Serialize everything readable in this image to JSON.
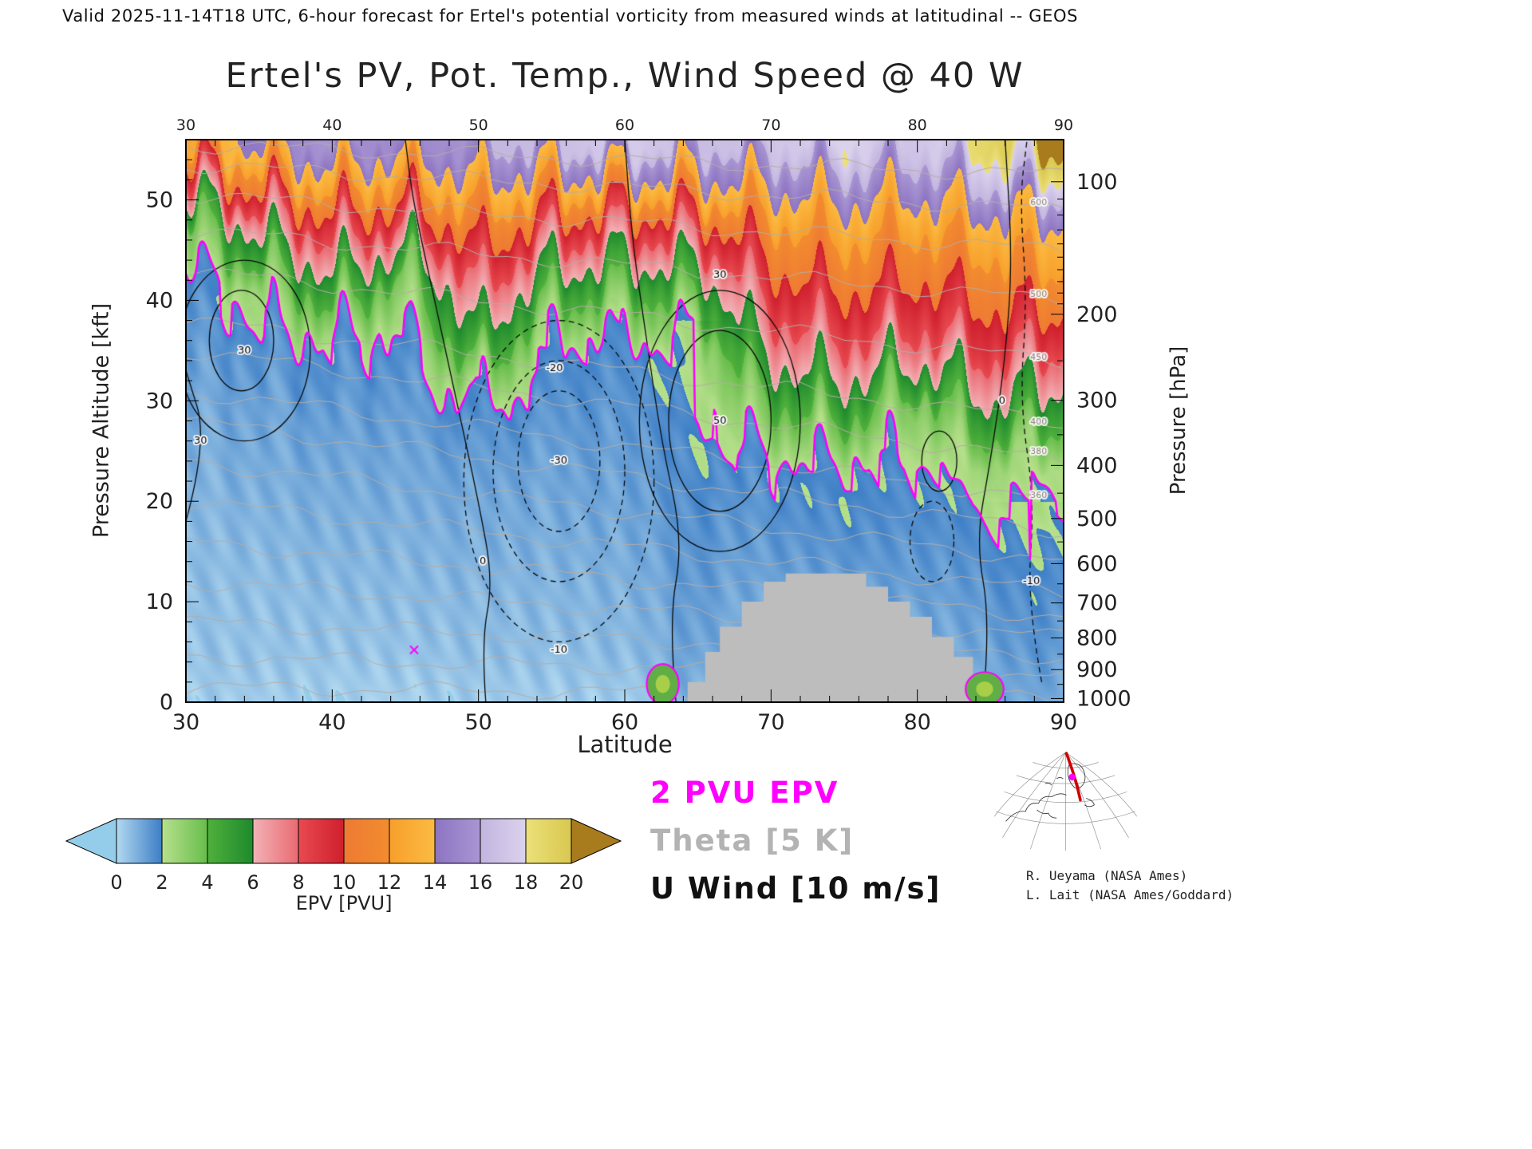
{
  "header": {
    "text": "Valid 2025-11-14T18 UTC, 6-hour forecast for Ertel's potential vorticity from measured winds at latitudinal -- GEOS"
  },
  "title": "Ertel's PV, Pot. Temp., Wind Speed @ 40 W",
  "axes": {
    "x": {
      "label": "Latitude",
      "min": 30,
      "max": 90,
      "major_ticks": [
        30,
        40,
        50,
        60,
        70,
        80,
        90
      ],
      "minor_step": 2
    },
    "y_left": {
      "label": "Pressure Altitude [kft]",
      "min": 0,
      "max": 56,
      "major_ticks": [
        0,
        10,
        20,
        30,
        40,
        50
      ],
      "minor_step": 2
    },
    "y_right": {
      "label": "Pressure [hPa]",
      "major_ticks": [
        100,
        200,
        300,
        400,
        500,
        600,
        700,
        800,
        900,
        1000
      ],
      "minor_ticks": [
        110,
        120,
        130,
        140,
        150,
        160,
        170,
        180,
        190,
        250,
        350,
        450,
        550,
        650,
        750,
        850,
        950
      ]
    }
  },
  "legend": {
    "items": [
      {
        "label": "2 PVU EPV",
        "color": "#ff00ff"
      },
      {
        "label": "Theta [5 K]",
        "color": "#b3b3b3"
      },
      {
        "label": "U Wind [10 m/s]",
        "color": "#111111"
      }
    ]
  },
  "colorbar": {
    "label": "EPV [PVU]",
    "ticks": [
      0,
      2,
      4,
      6,
      8,
      10,
      12,
      14,
      16,
      18,
      20
    ],
    "under_color": "#93cdea",
    "over_color": "#a87b1c",
    "segments": [
      {
        "from": 0,
        "to": 2,
        "c0": "#b2d9f0",
        "c1": "#3d7ec6"
      },
      {
        "from": 2,
        "to": 4,
        "c0": "#b7e08c",
        "c1": "#67bd4b"
      },
      {
        "from": 4,
        "to": 6,
        "c0": "#4fb03c",
        "c1": "#1e8a2d"
      },
      {
        "from": 6,
        "to": 8,
        "c0": "#f2b2b6",
        "c1": "#ea6a72"
      },
      {
        "from": 8,
        "to": 10,
        "c0": "#e84a50",
        "c1": "#cf1f2d"
      },
      {
        "from": 10,
        "to": 12,
        "c0": "#ee7a33",
        "c1": "#f28c2f"
      },
      {
        "from": 12,
        "to": 14,
        "c0": "#f79f2c",
        "c1": "#fbbb42"
      },
      {
        "from": 14,
        "to": 16,
        "c0": "#8d74c2",
        "c1": "#a996d3"
      },
      {
        "from": 16,
        "to": 18,
        "c0": "#c2b5df",
        "c1": "#dbd2ed"
      },
      {
        "from": 18,
        "to": 20,
        "c0": "#ebe079",
        "c1": "#d9c74f"
      }
    ]
  },
  "credits": {
    "line1": "R. Ueyama (NASA Ames)",
    "line2": "L. Lait (NASA Ames/Goddard)"
  },
  "inset_map": {
    "track_color": "#cf0000",
    "marker_color": "#ff00ff"
  },
  "chart_data": {
    "type": "heatmap",
    "title": "Ertel's PV, Pot. Temp., Wind Speed @ 40 W",
    "xlabel": "Latitude",
    "ylabel": "Pressure Altitude [kft]",
    "x_lat": [
      30,
      35,
      40,
      45,
      50,
      55,
      60,
      65,
      70,
      75,
      80,
      85,
      90
    ],
    "y_alt_kft": [
      0,
      6,
      12,
      18,
      24,
      30,
      36,
      42,
      48,
      52,
      56
    ],
    "epv_grid_pvu": [
      [
        0.5,
        0.5,
        0.6,
        0.7,
        0.9,
        1.1,
        1.4,
        1.6,
        3.4,
        8.0,
        12.5
      ],
      [
        0.5,
        0.5,
        0.6,
        0.8,
        1.0,
        1.2,
        1.6,
        2.8,
        7.0,
        11.0,
        14.5
      ],
      [
        0.4,
        0.5,
        0.7,
        0.9,
        1.1,
        1.4,
        1.9,
        5.5,
        9.5,
        13.0,
        16.0
      ],
      [
        0.4,
        0.5,
        0.7,
        0.9,
        1.1,
        1.3,
        1.7,
        3.2,
        8.5,
        12.0,
        15.0
      ],
      [
        0.5,
        0.6,
        0.8,
        1.0,
        1.3,
        1.9,
        5.5,
        8.5,
        11.5,
        14.0,
        16.0
      ],
      [
        0.5,
        0.6,
        0.8,
        1.0,
        1.2,
        1.5,
        1.9,
        5.0,
        9.5,
        13.0,
        16.5
      ],
      [
        0.5,
        0.7,
        0.9,
        1.1,
        1.3,
        1.5,
        1.8,
        4.5,
        9.0,
        13.5,
        17.5
      ],
      [
        0.6,
        0.8,
        1.0,
        1.2,
        1.4,
        1.6,
        1.9,
        5.0,
        9.5,
        13.5,
        16.5
      ],
      [
        0.7,
        0.9,
        1.2,
        1.5,
        1.9,
        4.0,
        7.0,
        9.5,
        12.0,
        14.5,
        17.0
      ],
      [
        0.8,
        1.0,
        1.3,
        1.7,
        2.1,
        5.0,
        8.0,
        10.5,
        13.0,
        15.5,
        18.0
      ],
      [
        0.8,
        1.0,
        1.3,
        1.6,
        1.9,
        3.0,
        7.5,
        10.0,
        12.5,
        15.0,
        17.0
      ],
      [
        0.9,
        1.1,
        1.4,
        1.8,
        2.8,
        6.0,
        9.0,
        11.0,
        13.5,
        16.5,
        19.0
      ],
      [
        0.9,
        1.1,
        1.4,
        1.7,
        2.2,
        5.0,
        8.5,
        11.5,
        14.0,
        17.5,
        21.0
      ]
    ],
    "tropopause_2pvu": {
      "lat": [
        30,
        35,
        40,
        45,
        50,
        55,
        60,
        65,
        70,
        75,
        80,
        85,
        90
      ],
      "alt_kft": [
        43,
        40,
        37,
        38.5,
        31,
        37,
        37.5,
        37,
        24,
        23,
        25.5,
        21,
        23
      ]
    },
    "missing_data_region": {
      "color": "#bdbdbd",
      "boundary_lat_alt": [
        [
          64.3,
          0
        ],
        [
          64.3,
          2
        ],
        [
          65.5,
          2
        ],
        [
          65.5,
          5
        ],
        [
          66.5,
          5
        ],
        [
          66.5,
          7.5
        ],
        [
          68,
          7.5
        ],
        [
          68,
          10
        ],
        [
          69.5,
          10
        ],
        [
          69.5,
          12
        ],
        [
          71,
          12
        ],
        [
          71,
          12.8
        ],
        [
          76.5,
          12.8
        ],
        [
          76.5,
          11.5
        ],
        [
          78,
          11.5
        ],
        [
          78,
          10
        ],
        [
          79.5,
          10
        ],
        [
          79.5,
          8.5
        ],
        [
          81,
          8.5
        ],
        [
          81,
          6.5
        ],
        [
          82.5,
          6.5
        ],
        [
          82.5,
          4.5
        ],
        [
          83.8,
          4.5
        ],
        [
          83.8,
          2
        ],
        [
          85,
          2
        ],
        [
          85,
          0
        ]
      ]
    },
    "theta_contours": {
      "interval_k": 5,
      "lines": [
        {
          "level": 280,
          "alt_at_30": 1.5,
          "alt_at_90": 0.5,
          "label": false
        },
        {
          "level": 290,
          "alt_at_30": 4.5,
          "alt_at_90": 2.5,
          "label": false
        },
        {
          "level": 300,
          "alt_at_30": 8,
          "alt_at_90": 4.5,
          "label": false
        },
        {
          "level": 310,
          "alt_at_30": 12,
          "alt_at_90": 6.5,
          "label": false
        },
        {
          "level": 320,
          "alt_at_30": 16,
          "alt_at_90": 8.5,
          "label": false
        },
        {
          "level": 330,
          "alt_at_30": 20,
          "alt_at_90": 11,
          "label": false
        },
        {
          "level": 340,
          "alt_at_30": 24,
          "alt_at_90": 14,
          "label": false
        },
        {
          "level": 350,
          "alt_at_30": 28,
          "alt_at_90": 17,
          "label": false
        },
        {
          "level": 360,
          "alt_at_30": 31,
          "alt_at_90": 20,
          "label": true
        },
        {
          "level": 380,
          "alt_at_30": 35,
          "alt_at_90": 24,
          "label": true
        },
        {
          "level": 400,
          "alt_at_30": 38,
          "alt_at_90": 28,
          "label": true
        },
        {
          "level": 450,
          "alt_at_30": 43,
          "alt_at_90": 34,
          "label": true
        },
        {
          "level": 500,
          "alt_at_30": 47,
          "alt_at_90": 40,
          "label": true
        },
        {
          "level": 550,
          "alt_at_30": 50.5,
          "alt_at_90": 45,
          "label": false
        },
        {
          "level": 600,
          "alt_at_30": 53.5,
          "alt_at_90": 49,
          "label": true
        },
        {
          "level": 650,
          "alt_at_30": 55.5,
          "alt_at_90": 52.5,
          "label": false
        }
      ]
    },
    "wind_contours": {
      "interval_ms": 10,
      "lines": [
        {
          "kind": "poly",
          "dash": false,
          "pts": [
            [
              50.5,
              0
            ],
            [
              50.2,
              6
            ],
            [
              51,
              12
            ],
            [
              50,
              20
            ],
            [
              48.5,
              30
            ],
            [
              47,
              40
            ],
            [
              45.5,
              50
            ],
            [
              45,
              56
            ]
          ],
          "label": "0",
          "label_at": [
            50.3,
            14
          ]
        },
        {
          "kind": "poly",
          "dash": false,
          "pts": [
            [
              63.5,
              0
            ],
            [
              63,
              8
            ],
            [
              64,
              16
            ],
            [
              62.5,
              26
            ],
            [
              61.5,
              36
            ],
            [
              60.5,
              46
            ],
            [
              60,
              56
            ]
          ],
          "label": "",
          "label_at": null
        },
        {
          "kind": "poly",
          "dash": false,
          "pts": [
            [
              30,
              18
            ],
            [
              31.5,
              26
            ],
            [
              30,
              33
            ]
          ],
          "label": "30",
          "label_at": [
            31,
            26
          ]
        },
        {
          "kind": "ellipse",
          "dash": false,
          "c": [
            66.5,
            28
          ],
          "r": [
            5.5,
            13
          ],
          "label": "30",
          "label_at": [
            66.5,
            42.5
          ]
        },
        {
          "kind": "ellipse",
          "dash": false,
          "c": [
            66.5,
            28
          ],
          "r": [
            3.5,
            9
          ],
          "label": "50",
          "label_at": [
            66.5,
            28
          ]
        },
        {
          "kind": "ellipse",
          "dash": false,
          "c": [
            34,
            35
          ],
          "r": [
            4.5,
            9
          ],
          "label": "30",
          "label_at": [
            34,
            35
          ]
        },
        {
          "kind": "ellipse",
          "dash": false,
          "c": [
            33.8,
            36
          ],
          "r": [
            2.2,
            5
          ],
          "label": "",
          "label_at": null
        },
        {
          "kind": "ellipse",
          "dash": true,
          "c": [
            55.5,
            22
          ],
          "r": [
            6.5,
            16
          ],
          "label": "-10",
          "label_at": [
            55.5,
            5.2
          ]
        },
        {
          "kind": "ellipse",
          "dash": true,
          "c": [
            55.5,
            23
          ],
          "r": [
            4.5,
            11
          ],
          "label": "-20",
          "label_at": [
            55.2,
            33.2
          ]
        },
        {
          "kind": "ellipse",
          "dash": true,
          "c": [
            55.5,
            24
          ],
          "r": [
            2.8,
            7
          ],
          "label": "-30",
          "label_at": [
            55.5,
            24
          ]
        },
        {
          "kind": "poly",
          "dash": false,
          "pts": [
            [
              84.5,
              0
            ],
            [
              85,
              8
            ],
            [
              84,
              16
            ],
            [
              85,
              24
            ],
            [
              86,
              34
            ],
            [
              86.5,
              44
            ],
            [
              86,
              56
            ]
          ],
          "label": "0",
          "label_at": [
            85.8,
            30
          ]
        },
        {
          "kind": "poly",
          "dash": true,
          "pts": [
            [
              88.5,
              2
            ],
            [
              87.5,
              10
            ],
            [
              88,
              20
            ],
            [
              87,
              30
            ],
            [
              87.5,
              40
            ],
            [
              87,
              50
            ],
            [
              87.5,
              56
            ]
          ],
          "label": "-10",
          "label_at": [
            87.8,
            12
          ]
        },
        {
          "kind": "ellipse",
          "dash": true,
          "c": [
            81,
            16
          ],
          "r": [
            1.5,
            4
          ],
          "label": "",
          "label_at": null
        },
        {
          "kind": "ellipse",
          "dash": false,
          "c": [
            81.5,
            24
          ],
          "r": [
            1.2,
            3
          ],
          "label": "",
          "label_at": null
        }
      ]
    },
    "low_level_pv_features": [
      {
        "lat": 62.6,
        "alt_kft": 1.8,
        "rx": 1.1,
        "ry": 2.0
      },
      {
        "lat": 84.6,
        "alt_kft": 1.3,
        "rx": 1.3,
        "ry": 1.7
      }
    ],
    "point_marker": {
      "lat": 45.6,
      "alt_kft": 5.2,
      "color": "#ff00ff"
    }
  }
}
